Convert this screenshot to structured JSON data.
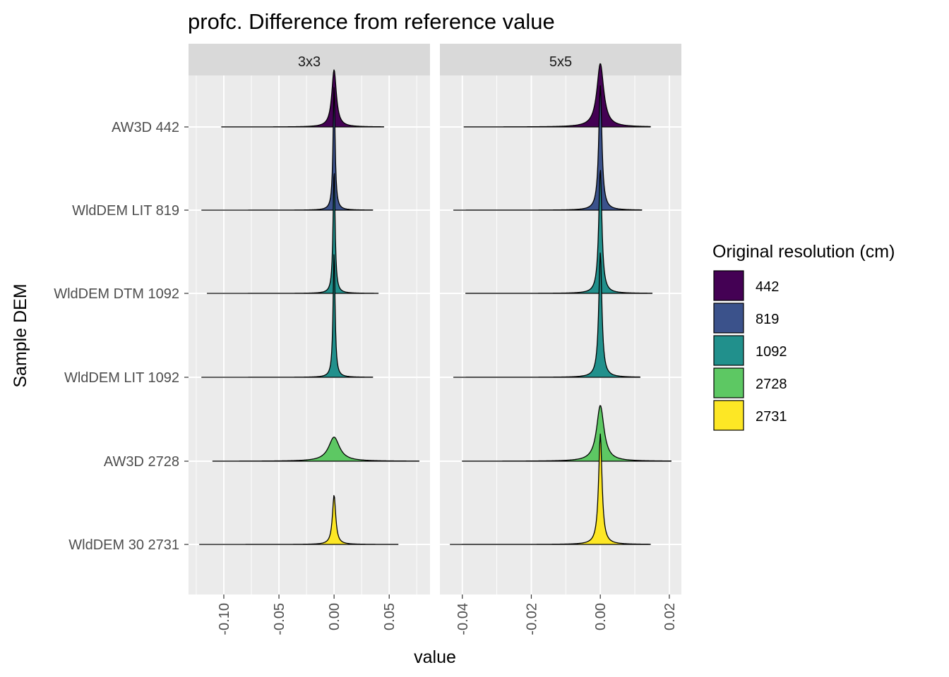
{
  "chart_data": {
    "type": "area",
    "subtype": "ridgeline-density",
    "title": "profc. Difference from reference value",
    "xlabel": "value",
    "ylabel": "Sample DEM",
    "grid": true,
    "legend_position": "right",
    "legend": {
      "title": "Original resolution (cm)",
      "entries": [
        {
          "label": "442",
          "color": "#440154"
        },
        {
          "label": "819",
          "color": "#3b528b"
        },
        {
          "label": "1092",
          "color": "#21908c"
        },
        {
          "label": "2728",
          "color": "#5dc863"
        },
        {
          "label": "2731",
          "color": "#fde725"
        }
      ]
    },
    "categories": [
      "AW3D 442",
      "WldDEM LIT 819",
      "WldDEM DTM 1092",
      "WldDEM LIT 1092",
      "AW3D 2728",
      "WldDEM 30 2731"
    ],
    "facets": [
      {
        "label": "3x3",
        "xlim": [
          -0.132,
          0.087
        ],
        "xticks": [
          -0.1,
          -0.05,
          0.0,
          0.05
        ],
        "xtick_labels": [
          "-0.10",
          "-0.05",
          "0.00",
          "0.05"
        ],
        "series": [
          {
            "name": "AW3D 442",
            "resolution": "442",
            "min": -0.102,
            "max": 0.045,
            "center": 0.0,
            "width": 0.0025,
            "height": 0.45
          },
          {
            "name": "WldDEM LIT 819",
            "resolution": "819",
            "min": -0.12,
            "max": 0.035,
            "center": 0.0,
            "width": 0.0011,
            "height": 0.98
          },
          {
            "name": "WldDEM DTM 1092",
            "resolution": "1092",
            "min": -0.115,
            "max": 0.04,
            "center": 0.0,
            "width": 0.0011,
            "height": 0.98
          },
          {
            "name": "WldDEM LIT 1092",
            "resolution": "1092",
            "min": -0.12,
            "max": 0.035,
            "center": 0.0,
            "width": 0.0011,
            "height": 0.98
          },
          {
            "name": "AW3D 2728",
            "resolution": "2728",
            "min": -0.11,
            "max": 0.077,
            "center": 0.0,
            "width": 0.006,
            "height": 0.19
          },
          {
            "name": "WldDEM 30 2731",
            "resolution": "2731",
            "min": -0.122,
            "max": 0.058,
            "center": 0.0,
            "width": 0.0018,
            "height": 0.39
          }
        ]
      },
      {
        "label": "5x5",
        "xlim": [
          -0.0465,
          0.0235
        ],
        "xticks": [
          -0.04,
          -0.02,
          0.0,
          0.02
        ],
        "xtick_labels": [
          "-0.04",
          "-0.02",
          "0.00",
          "0.02"
        ],
        "series": [
          {
            "name": "AW3D 442",
            "resolution": "442",
            "min": -0.0395,
            "max": 0.0145,
            "center": 0.0,
            "width": 0.0012,
            "height": 0.5
          },
          {
            "name": "WldDEM LIT 819",
            "resolution": "819",
            "min": -0.0425,
            "max": 0.012,
            "center": 0.0,
            "width": 0.00055,
            "height": 0.98
          },
          {
            "name": "WldDEM DTM 1092",
            "resolution": "1092",
            "min": -0.039,
            "max": 0.015,
            "center": 0.0,
            "width": 0.00055,
            "height": 0.98
          },
          {
            "name": "WldDEM LIT 1092",
            "resolution": "1092",
            "min": -0.0425,
            "max": 0.0115,
            "center": 0.0,
            "width": 0.00055,
            "height": 0.98
          },
          {
            "name": "AW3D 2728",
            "resolution": "2728",
            "min": -0.04,
            "max": 0.0205,
            "center": 0.0,
            "width": 0.0013,
            "height": 0.44
          },
          {
            "name": "WldDEM 30 2731",
            "resolution": "2731",
            "min": -0.0435,
            "max": 0.0145,
            "center": 0.0,
            "width": 0.0006,
            "height": 0.87
          }
        ]
      }
    ]
  }
}
